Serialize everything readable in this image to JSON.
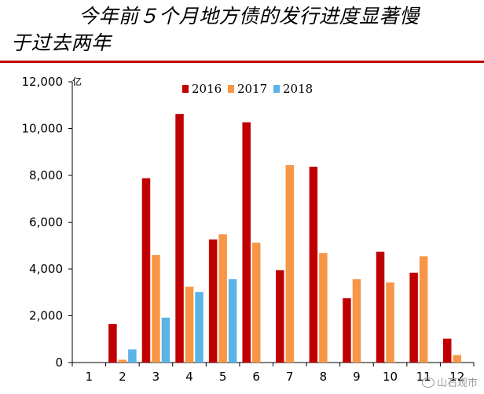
{
  "chart_data": {
    "type": "bar",
    "title": "今年前５个月地方债的发行进度显著慢于过去两年",
    "title_line1": "今年前５个月地方债的发行进度显著慢",
    "title_line2": "于过去两年",
    "unit": "亿",
    "categories": [
      "1",
      "2",
      "3",
      "4",
      "5",
      "6",
      "7",
      "8",
      "9",
      "10",
      "11",
      "12"
    ],
    "ylim": [
      0,
      12000
    ],
    "yticks": [
      0,
      2000,
      4000,
      6000,
      8000,
      10000,
      12000
    ],
    "ytick_labels": [
      "0",
      "2,000",
      "4,000",
      "6,000",
      "8,000",
      "10,000",
      "12,000"
    ],
    "legend_position": "top",
    "grid": false,
    "series": [
      {
        "name": "2016",
        "color": "#c00000",
        "values": [
          0,
          1650,
          7880,
          10620,
          5260,
          10270,
          3950,
          8370,
          2750,
          4740,
          3840,
          1020
        ]
      },
      {
        "name": "2017",
        "color": "#f79646",
        "values": [
          0,
          120,
          4600,
          3240,
          5480,
          5120,
          8440,
          4680,
          3560,
          3420,
          4540,
          320
        ]
      },
      {
        "name": "2018",
        "color": "#5ab4e8",
        "values": [
          0,
          560,
          1920,
          3020,
          3560,
          null,
          null,
          null,
          null,
          null,
          null,
          null
        ]
      }
    ]
  },
  "watermark": "山石观市",
  "icons": {
    "watermark": "wechat-icon"
  }
}
